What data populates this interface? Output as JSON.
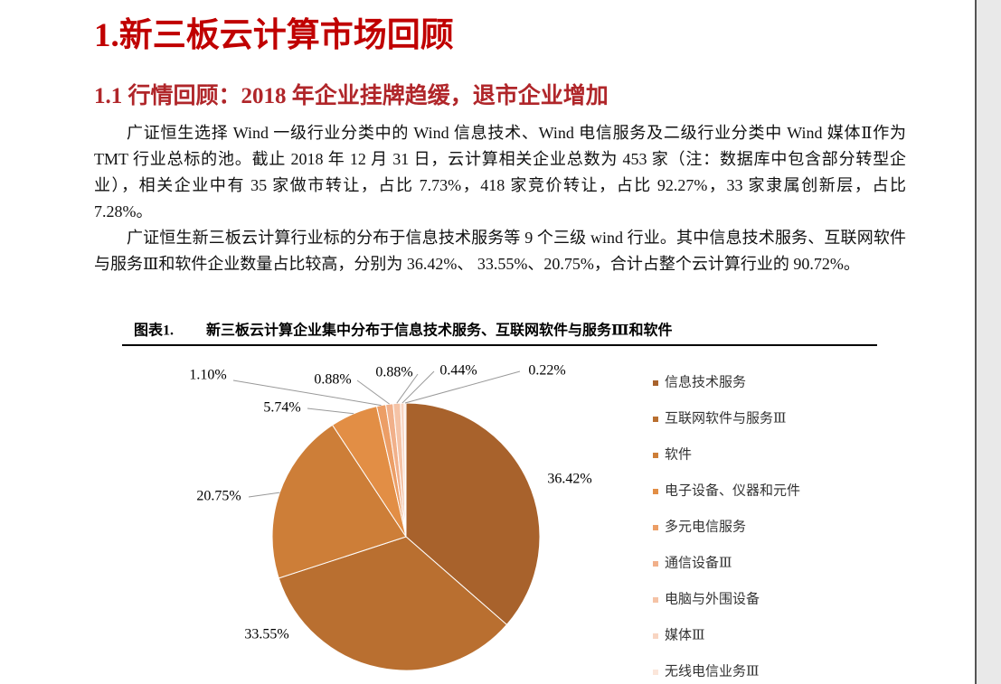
{
  "heading": "1.新三板云计算市场回顾",
  "subheading": "1.1 行情回顾：2018 年企业挂牌趋缓，退市企业增加",
  "paragraphs": [
    "广证恒生选择 Wind 一级行业分类中的 Wind 信息技术、Wind 电信服务及二级行业分类中 Wind 媒体Ⅱ作为 TMT 行业总标的池。截止 2018 年 12 月 31 日，云计算相关企业总数为 453 家（注：数据库中包含部分转型企业），相关企业中有 35 家做市转让，占比 7.73%，418 家竞价转让，占比 92.27%，33 家隶属创新层，占比 7.28%。",
    "广证恒生新三板云计算行业标的分布于信息技术服务等 9 个三级 wind 行业。其中信息技术服务、互联网软件与服务Ⅲ和软件企业数量占比较高，分别为 36.42%、 33.55%、20.75%，合计占整个云计算行业的 90.72%。"
  ],
  "chart_data": {
    "type": "pie",
    "label": "图表1.",
    "title": "新三板云计算企业集中分布于信息技术服务、互联网软件与服务Ⅲ和软件",
    "categories": [
      "信息技术服务",
      "互联网软件与服务Ⅲ",
      "软件",
      "电子设备、仪器和元件",
      "多元电信服务",
      "通信设备Ⅲ",
      "电脑与外围设备",
      "媒体Ⅲ",
      "无线电信业务Ⅲ"
    ],
    "values": [
      36.42,
      33.55,
      20.75,
      5.74,
      1.1,
      0.88,
      0.88,
      0.44,
      0.22
    ],
    "value_labels": [
      "36.42%",
      "33.55%",
      "20.75%",
      "5.74%",
      "1.10%",
      "0.88%",
      "0.88%",
      "0.44%",
      "0.22%"
    ],
    "colors": [
      "#a8622c",
      "#b96f30",
      "#cd7e38",
      "#e28e45",
      "#ec9e66",
      "#f1b08a",
      "#f5c3a6",
      "#f8d5c2",
      "#fbe6da"
    ],
    "legend": "right"
  }
}
